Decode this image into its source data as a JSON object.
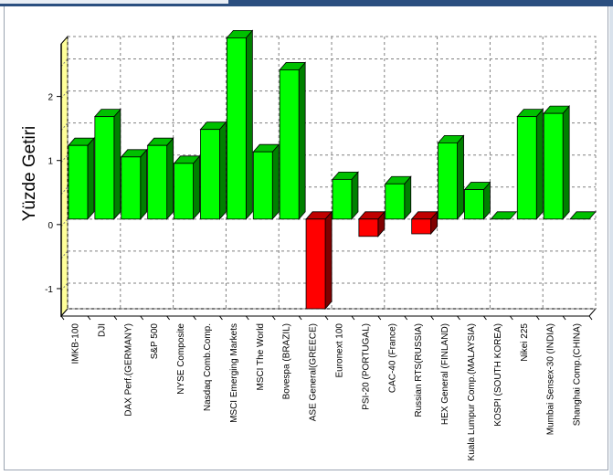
{
  "chart_data": {
    "type": "bar",
    "title": "",
    "xlabel": "",
    "ylabel": "Yüzde Getiri",
    "ylim": [
      -1.4,
      2.85
    ],
    "yticks": [
      -1,
      0,
      1,
      2
    ],
    "grid": true,
    "legend": "none",
    "style": "3d",
    "colors": {
      "positive": "#00ff00",
      "negative": "#ff0000",
      "wall": "#ffff99"
    },
    "categories": [
      "IMKB-100",
      "DJI",
      "DAX Perf.(GERMANY)",
      "S&P 500",
      "NYSE Composite",
      "Nasdaq Comb.Comp.",
      "MSCI Emerging Markets",
      "MSCI The World",
      "Bovespa (BRAZIL)",
      "ASE General(GREECE)",
      "Euronext 100",
      "PSI-20 (PORTUGAL)",
      "CAC-40 (France)",
      "Russian RTS(RUSSIA)",
      "HEX General (FINLAND)",
      "Kuala Lumpur Comp.(MALAYSIA)",
      "KOSPI (SOUTH KOREA)",
      "Nikei 225",
      "Mumbai Sensex-30 (INDIA)",
      "Shanghai Comp.(CHINA)"
    ],
    "values": [
      1.15,
      1.6,
      0.97,
      1.15,
      0.87,
      1.4,
      2.83,
      1.05,
      2.33,
      -1.4,
      0.62,
      -0.27,
      0.55,
      -0.23,
      1.19,
      0.46,
      0.0,
      1.6,
      1.65,
      0.0
    ]
  }
}
